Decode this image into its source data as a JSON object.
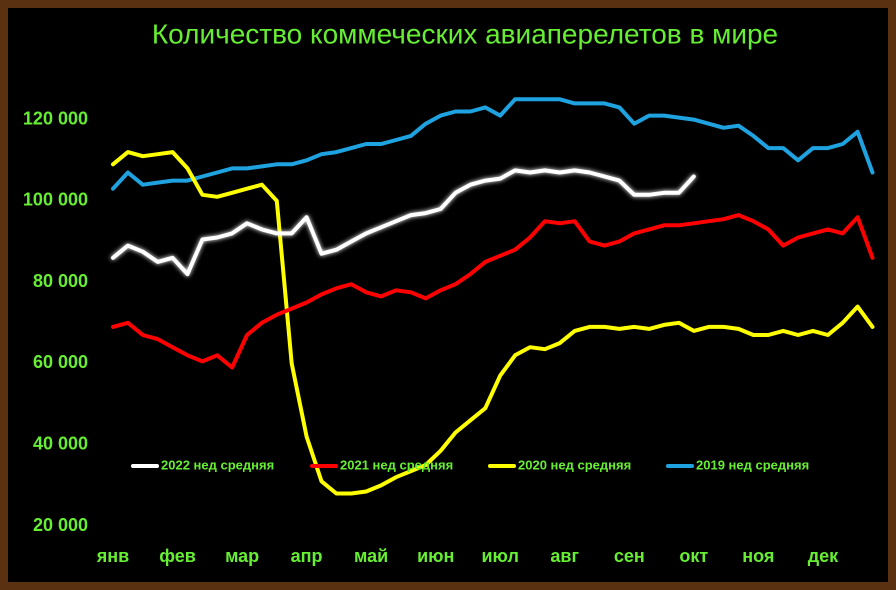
{
  "chart_data": {
    "type": "line",
    "title": "Количество коммеческих авиаперелетов в мире",
    "x": [
      0,
      1,
      2,
      3,
      4,
      5,
      6,
      7,
      8,
      9,
      10,
      11,
      12,
      13,
      14,
      15,
      16,
      17,
      18,
      19,
      20,
      21,
      22,
      23,
      24,
      25,
      26,
      27,
      28,
      29,
      30,
      31,
      32,
      33,
      34,
      35,
      36,
      37,
      38,
      39,
      40,
      41,
      42,
      43,
      44,
      45,
      46,
      47,
      48,
      49,
      50,
      51
    ],
    "xlim": [
      0,
      51.3
    ],
    "xticks": [
      {
        "value": 0,
        "label": "янв"
      },
      {
        "value": 4.33,
        "label": "фев"
      },
      {
        "value": 8.67,
        "label": "мар"
      },
      {
        "value": 13,
        "label": "апр"
      },
      {
        "value": 17.33,
        "label": "май"
      },
      {
        "value": 21.67,
        "label": "июн"
      },
      {
        "value": 26,
        "label": "июл"
      },
      {
        "value": 30.33,
        "label": "авг"
      },
      {
        "value": 34.67,
        "label": "сен"
      },
      {
        "value": 39,
        "label": "окт"
      },
      {
        "value": 43.33,
        "label": "ноя"
      },
      {
        "value": 47.67,
        "label": "дек"
      }
    ],
    "ylim": [
      20000,
      130000
    ],
    "yticks": [
      {
        "value": 20000,
        "label": "20 000"
      },
      {
        "value": 40000,
        "label": "40 000"
      },
      {
        "value": 60000,
        "label": "60 000"
      },
      {
        "value": 80000,
        "label": "80 000"
      },
      {
        "value": 100000,
        "label": "100 000"
      },
      {
        "value": 120000,
        "label": "120 000"
      }
    ],
    "legend": "inside-bottom",
    "series": [
      {
        "name": "2022 нед средняя",
        "color": "#ffffff",
        "glow": true,
        "values": [
          86000,
          89000,
          87500,
          85000,
          86000,
          82000,
          90500,
          91000,
          92000,
          94500,
          93000,
          92000,
          92000,
          96000,
          87000,
          88000,
          90000,
          92000,
          93500,
          95000,
          96500,
          97000,
          98000,
          102000,
          104000,
          105000,
          105500,
          107500,
          107000,
          107500,
          107000,
          107500,
          107000,
          106000,
          105000,
          101500,
          101500,
          102000,
          102000,
          106000,
          null,
          null,
          null,
          null,
          null,
          null,
          null,
          null,
          null,
          null,
          null,
          null
        ]
      },
      {
        "name": "2021 нед средняя",
        "color": "#ff0000",
        "values": [
          69000,
          70000,
          67000,
          66000,
          64000,
          62000,
          60500,
          62000,
          59000,
          67000,
          70000,
          72000,
          73500,
          75000,
          77000,
          78500,
          79500,
          77500,
          76500,
          78000,
          77500,
          76000,
          78000,
          79500,
          82000,
          85000,
          86500,
          88000,
          91000,
          95000,
          94500,
          95000,
          90000,
          89000,
          90000,
          92000,
          93000,
          94000,
          94000,
          94500,
          95000,
          95500,
          96500,
          95000,
          93000,
          89000,
          91000,
          92000,
          93000,
          92000,
          96000,
          86000
        ]
      },
      {
        "name": "2020 нед средняя",
        "color": "#ffff00",
        "values": [
          109000,
          112000,
          111000,
          111500,
          112000,
          108000,
          101500,
          101000,
          102000,
          103000,
          104000,
          100000,
          60000,
          42000,
          31000,
          28000,
          28000,
          28500,
          30000,
          32000,
          33500,
          35000,
          38500,
          43000,
          46000,
          49000,
          57000,
          62000,
          64000,
          63500,
          65000,
          68000,
          69000,
          69000,
          68500,
          69000,
          68500,
          69500,
          70000,
          68000,
          69000,
          69000,
          68500,
          67000,
          67000,
          68000,
          67000,
          68000,
          67000,
          70000,
          74000,
          69000
        ]
      },
      {
        "name": "2019 нед средняя",
        "color": "#1fa3e0",
        "values": [
          103000,
          107000,
          104000,
          104500,
          105000,
          105000,
          106000,
          107000,
          108000,
          108000,
          108500,
          109000,
          109000,
          110000,
          111500,
          112000,
          113000,
          114000,
          114000,
          115000,
          116000,
          119000,
          121000,
          122000,
          122000,
          123000,
          121000,
          125000,
          125000,
          125000,
          125000,
          124000,
          124000,
          124000,
          123000,
          119000,
          121000,
          121000,
          120500,
          120000,
          119000,
          118000,
          118500,
          116000,
          113000,
          113000,
          110000,
          113000,
          113000,
          114000,
          117000,
          107000
        ]
      }
    ]
  }
}
